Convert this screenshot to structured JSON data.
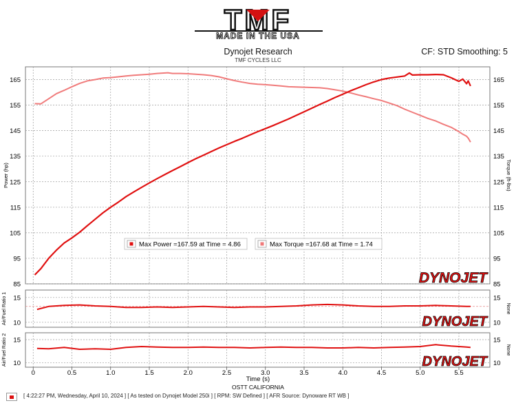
{
  "brand": {
    "logo_text": "TMF",
    "tagline": "MADE IN THE USA"
  },
  "header": {
    "title": "Dynojet Research",
    "subtitle": "TMF CYCLES LLC",
    "correction": "CF: STD Smoothing: 5"
  },
  "watermark": "DYNOJET",
  "footer": {
    "text": "[ 4:22:27 PM, Wednesday, April 10, 2024 ] [ As tested on Dynojet Model 250i ] [ RPM: SW Defined ] [ AFR Source: Dynoware RT WB ]"
  },
  "colors": {
    "power": "#e01010",
    "torque": "#f07a7a",
    "afr": "#e01010",
    "grid": "#9a9a9a",
    "frame": "#777777"
  },
  "chart_data": [
    {
      "type": "line",
      "title": "Dynojet Research",
      "subtitle": "TMF CYCLES LLC",
      "xlabel": "Time (s)",
      "ylabel_left": "Power (hp)",
      "ylabel_right": "Torque (ft-lbs)",
      "xlim": [
        -0.1,
        5.9
      ],
      "ylim_left": [
        85,
        170
      ],
      "ylim_right": [
        85,
        170
      ],
      "yticks": [
        85,
        95,
        105,
        115,
        125,
        135,
        145,
        155,
        165
      ],
      "grid": true,
      "legend": [
        {
          "name": "Max Power",
          "text": "Max Power =167.59 at Time = 4.86"
        },
        {
          "name": "Max Torque",
          "text": "Max Torque =167.68 at Time = 1.74"
        }
      ],
      "series": [
        {
          "name": "Power",
          "axis": "left",
          "x": [
            0.02,
            0.1,
            0.2,
            0.3,
            0.4,
            0.5,
            0.6,
            0.7,
            0.8,
            0.9,
            1.0,
            1.1,
            1.2,
            1.3,
            1.4,
            1.5,
            1.6,
            1.7,
            1.8,
            1.9,
            2.0,
            2.1,
            2.2,
            2.3,
            2.4,
            2.5,
            2.6,
            2.7,
            2.8,
            2.9,
            3.0,
            3.1,
            3.2,
            3.3,
            3.4,
            3.5,
            3.6,
            3.7,
            3.8,
            3.9,
            4.0,
            4.1,
            4.2,
            4.3,
            4.4,
            4.5,
            4.6,
            4.7,
            4.8,
            4.86,
            4.9,
            5.0,
            5.1,
            5.2,
            5.3,
            5.4,
            5.5,
            5.55,
            5.6,
            5.62,
            5.65
          ],
          "values": [
            88.5,
            91,
            95,
            98.2,
            101,
            103,
            105.2,
            107.8,
            110.3,
            112.8,
            115,
            117,
            119.2,
            121,
            122.8,
            124.5,
            126.2,
            127.8,
            129.4,
            130.9,
            132.5,
            134,
            135.4,
            136.8,
            138.2,
            139.5,
            140.8,
            142,
            143.3,
            144.6,
            145.8,
            147,
            148.3,
            149.6,
            151,
            152.4,
            153.8,
            155.2,
            156.6,
            158,
            159.3,
            160.6,
            161.8,
            163,
            164.1,
            165,
            165.6,
            166,
            166.4,
            167.59,
            166.8,
            166.9,
            166.9,
            167,
            166.9,
            165.7,
            164.3,
            165.2,
            163.4,
            164.5,
            162.5
          ]
        },
        {
          "name": "Torque",
          "axis": "right",
          "x": [
            0.02,
            0.1,
            0.2,
            0.3,
            0.4,
            0.5,
            0.6,
            0.7,
            0.8,
            0.9,
            1.0,
            1.1,
            1.2,
            1.3,
            1.4,
            1.5,
            1.6,
            1.74,
            1.8,
            1.9,
            2.0,
            2.1,
            2.2,
            2.3,
            2.4,
            2.5,
            2.6,
            2.7,
            2.8,
            2.9,
            3.0,
            3.1,
            3.2,
            3.3,
            3.4,
            3.5,
            3.6,
            3.7,
            3.8,
            3.9,
            4.0,
            4.1,
            4.2,
            4.3,
            4.4,
            4.5,
            4.6,
            4.7,
            4.8,
            4.9,
            5.0,
            5.1,
            5.2,
            5.3,
            5.4,
            5.5,
            5.55,
            5.6,
            5.62,
            5.65
          ],
          "values": [
            155.6,
            155.5,
            157.5,
            159.5,
            160.8,
            162.2,
            163.5,
            164.5,
            165,
            165.6,
            165.8,
            166.1,
            166.4,
            166.7,
            166.9,
            167.1,
            167.4,
            167.68,
            167.4,
            167.4,
            167.3,
            167.1,
            166.9,
            166.6,
            166.1,
            165.3,
            164.6,
            164,
            163.5,
            163.2,
            163,
            162.8,
            162.5,
            162.2,
            162.1,
            162,
            161.9,
            161.8,
            161.5,
            161,
            160.5,
            159.8,
            159,
            158.3,
            157.5,
            156.8,
            155.8,
            154.8,
            153.4,
            152.2,
            151,
            149.8,
            148.8,
            147.5,
            146.3,
            144.6,
            143.6,
            142.8,
            142.1,
            140.5
          ]
        }
      ]
    },
    {
      "type": "line",
      "ylabel_left": "Air/Fuel Ratio 1",
      "ylabel_right": "None",
      "ylim": [
        9,
        16.5
      ],
      "yticks": [
        10,
        15
      ],
      "reference_line": 13.2,
      "grid": true,
      "series": [
        {
          "name": "Air/Fuel Ratio 1",
          "x": [
            0.05,
            0.2,
            0.4,
            0.6,
            0.8,
            1.0,
            1.2,
            1.4,
            1.6,
            1.8,
            2.0,
            2.2,
            2.4,
            2.6,
            2.8,
            3.0,
            3.2,
            3.4,
            3.6,
            3.8,
            4.0,
            4.2,
            4.4,
            4.6,
            4.8,
            5.0,
            5.2,
            5.4,
            5.6,
            5.65
          ],
          "values": [
            12.6,
            13.2,
            13.4,
            13.5,
            13.3,
            13.2,
            13.0,
            13.0,
            13.1,
            13.0,
            13.1,
            13.2,
            13.1,
            13.0,
            13.1,
            13.1,
            13.2,
            13.3,
            13.5,
            13.6,
            13.5,
            13.3,
            13.2,
            13.2,
            13.3,
            13.3,
            13.4,
            13.3,
            13.2,
            13.2
          ]
        }
      ]
    },
    {
      "type": "line",
      "ylabel_left": "Air/Fuel Ratio 2",
      "ylabel_right": "None",
      "ylim": [
        9,
        16.5
      ],
      "yticks": [
        10,
        15
      ],
      "grid": true,
      "xticks": [
        0,
        0.5,
        1.0,
        1.5,
        2.0,
        2.5,
        3.0,
        3.5,
        4.0,
        4.5,
        5.0,
        5.5
      ],
      "xticklabels": [
        "0",
        "0.5",
        "1.0",
        "1.5",
        "2.0",
        "2.5",
        "3.0",
        "3.5",
        "4.0",
        "4.5",
        "5.0",
        "5.5"
      ],
      "xlabel": "Time (s)",
      "caption": "OSTT CALIFORNIA",
      "series": [
        {
          "name": "Air/Fuel Ratio 2",
          "x": [
            0.05,
            0.2,
            0.4,
            0.6,
            0.8,
            1.0,
            1.2,
            1.4,
            1.6,
            1.8,
            2.0,
            2.2,
            2.4,
            2.6,
            2.8,
            3.0,
            3.2,
            3.4,
            3.6,
            3.8,
            4.0,
            4.2,
            4.4,
            4.6,
            4.8,
            5.0,
            5.2,
            5.4,
            5.6,
            5.65
          ],
          "values": [
            13.1,
            13.0,
            13.3,
            12.9,
            13.0,
            12.9,
            13.3,
            13.5,
            13.4,
            13.3,
            13.3,
            13.4,
            13.3,
            13.3,
            13.2,
            13.3,
            13.4,
            13.3,
            13.3,
            13.2,
            13.2,
            13.3,
            13.2,
            13.3,
            13.4,
            13.5,
            13.9,
            13.6,
            13.4,
            13.3
          ]
        }
      ]
    }
  ]
}
